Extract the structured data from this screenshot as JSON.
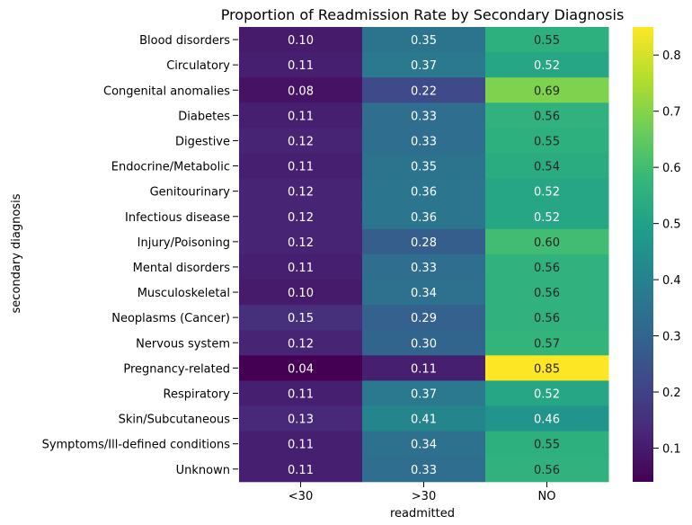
{
  "chart_data": {
    "type": "heatmap",
    "title": "Proportion of Readmission Rate by Secondary Diagnosis",
    "xlabel": "readmitted",
    "ylabel": "secondary diagnosis",
    "columns": [
      "<30",
      ">30",
      "NO"
    ],
    "rows": [
      "Blood disorders",
      "Circulatory",
      "Congenital anomalies",
      "Diabetes",
      "Digestive",
      "Endocrine/Metabolic",
      "Genitourinary",
      "Infectious disease",
      "Injury/Poisoning",
      "Mental disorders",
      "Musculoskeletal",
      "Neoplasms (Cancer)",
      "Nervous system",
      "Pregnancy-related",
      "Respiratory",
      "Skin/Subcutaneous",
      "Symptoms/Ill-defined conditions",
      "Unknown"
    ],
    "values": [
      [
        0.1,
        0.35,
        0.55
      ],
      [
        0.11,
        0.37,
        0.52
      ],
      [
        0.08,
        0.22,
        0.69
      ],
      [
        0.11,
        0.33,
        0.56
      ],
      [
        0.12,
        0.33,
        0.55
      ],
      [
        0.11,
        0.35,
        0.54
      ],
      [
        0.12,
        0.36,
        0.52
      ],
      [
        0.12,
        0.36,
        0.52
      ],
      [
        0.12,
        0.28,
        0.6
      ],
      [
        0.11,
        0.33,
        0.56
      ],
      [
        0.1,
        0.34,
        0.56
      ],
      [
        0.15,
        0.29,
        0.56
      ],
      [
        0.12,
        0.3,
        0.57
      ],
      [
        0.04,
        0.11,
        0.85
      ],
      [
        0.11,
        0.37,
        0.52
      ],
      [
        0.13,
        0.41,
        0.46
      ],
      [
        0.11,
        0.34,
        0.55
      ],
      [
        0.11,
        0.33,
        0.56
      ]
    ],
    "colormap": "viridis",
    "colorbar": {
      "min": 0.04,
      "max": 0.85,
      "ticks": [
        "0.1",
        "0.2",
        "0.3",
        "0.4",
        "0.5",
        "0.6",
        "0.7",
        "0.8"
      ]
    }
  }
}
